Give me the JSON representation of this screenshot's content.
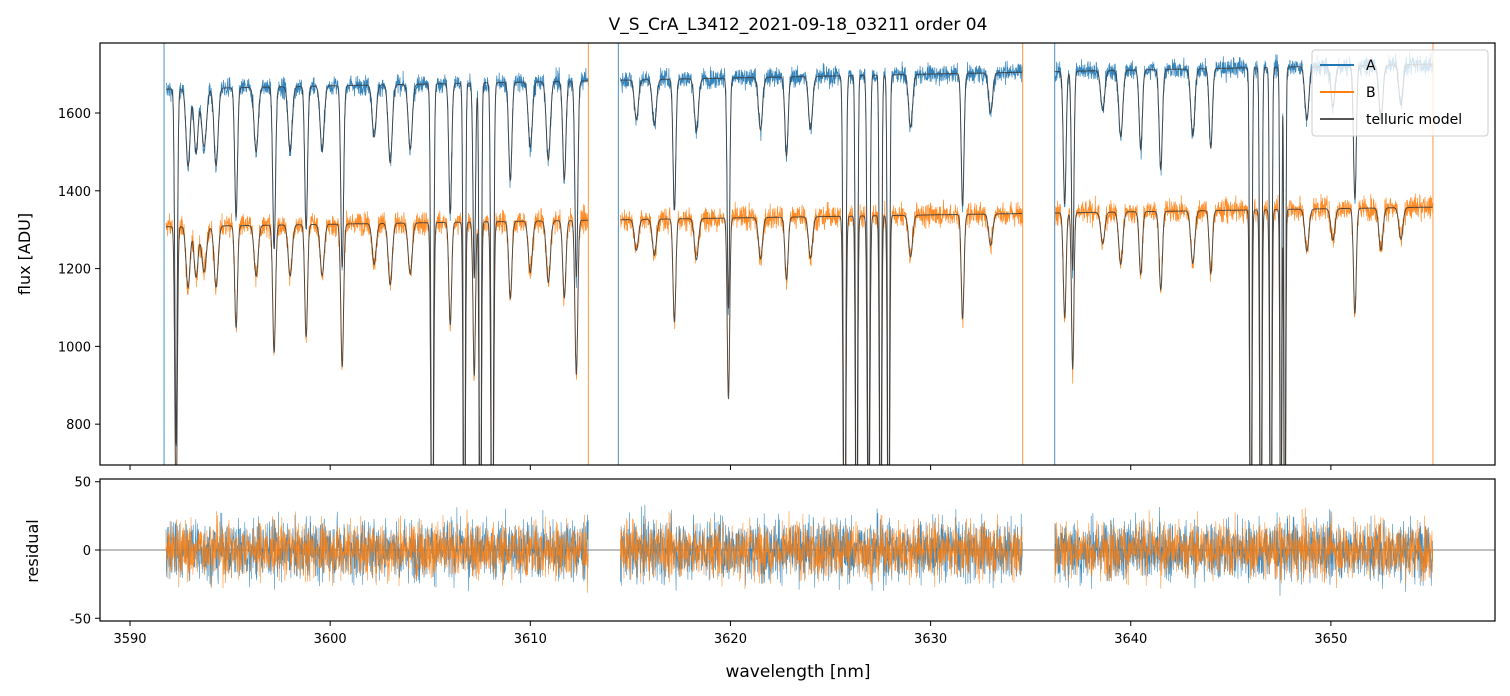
{
  "title": "V_S_CrA_L3412_2021-09-18_03211  order 04",
  "colors": {
    "A": "#1f77b4",
    "B": "#ff7f0e",
    "model": "#3a3a3a",
    "zero_line": "#555555"
  },
  "legend": {
    "placement": "top-right",
    "entries": [
      {
        "label": "A",
        "color": "#1f77b4"
      },
      {
        "label": "B",
        "color": "#ff7f0e"
      },
      {
        "label": "telluric model",
        "color": "#555555"
      }
    ]
  },
  "chart_data": [
    {
      "type": "line",
      "panel": "top",
      "title": "V_S_CrA_L3412_2021-09-18_03211  order 04",
      "xlabel": "",
      "ylabel": "flux [ADU]",
      "xlim": [
        3588.5,
        3658.2
      ],
      "ylim": [
        695,
        1780
      ],
      "yticks": [
        800,
        1000,
        1200,
        1400,
        1600
      ],
      "segments": [
        [
          3591.8,
          3612.9
        ],
        [
          3614.5,
          3634.6
        ],
        [
          3636.2,
          3655.1
        ]
      ],
      "series": [
        {
          "name": "A",
          "baseline": 1690,
          "noise": 18
        },
        {
          "name": "B",
          "baseline": 1330,
          "noise": 22
        },
        {
          "name": "telluric model"
        }
      ],
      "absorption_lines": [
        {
          "x": 3592.3,
          "depth": 0.55,
          "w": 0.06
        },
        {
          "x": 3592.9,
          "depth": 0.12,
          "w": 0.1
        },
        {
          "x": 3593.3,
          "depth": 0.1,
          "w": 0.1
        },
        {
          "x": 3593.7,
          "depth": 0.09,
          "w": 0.12
        },
        {
          "x": 3594.3,
          "depth": 0.12,
          "w": 0.1
        },
        {
          "x": 3595.3,
          "depth": 0.2,
          "w": 0.07
        },
        {
          "x": 3596.3,
          "depth": 0.1,
          "w": 0.1
        },
        {
          "x": 3597.2,
          "depth": 0.25,
          "w": 0.07
        },
        {
          "x": 3598.0,
          "depth": 0.1,
          "w": 0.1
        },
        {
          "x": 3598.8,
          "depth": 0.22,
          "w": 0.07
        },
        {
          "x": 3599.6,
          "depth": 0.1,
          "w": 0.1
        },
        {
          "x": 3600.6,
          "depth": 0.28,
          "w": 0.07
        },
        {
          "x": 3602.2,
          "depth": 0.08,
          "w": 0.1
        },
        {
          "x": 3603.0,
          "depth": 0.12,
          "w": 0.1
        },
        {
          "x": 3604.0,
          "depth": 0.1,
          "w": 0.1
        },
        {
          "x": 3605.1,
          "depth": 0.85,
          "w": 0.06
        },
        {
          "x": 3606.0,
          "depth": 0.2,
          "w": 0.07
        },
        {
          "x": 3606.7,
          "depth": 0.85,
          "w": 0.05
        },
        {
          "x": 3607.2,
          "depth": 0.3,
          "w": 0.06
        },
        {
          "x": 3607.5,
          "depth": 0.85,
          "w": 0.05
        },
        {
          "x": 3608.1,
          "depth": 0.85,
          "w": 0.06
        },
        {
          "x": 3609.0,
          "depth": 0.15,
          "w": 0.08
        },
        {
          "x": 3610.0,
          "depth": 0.1,
          "w": 0.1
        },
        {
          "x": 3610.9,
          "depth": 0.12,
          "w": 0.1
        },
        {
          "x": 3611.7,
          "depth": 0.15,
          "w": 0.08
        },
        {
          "x": 3612.3,
          "depth": 0.3,
          "w": 0.07
        },
        {
          "x": 3615.3,
          "depth": 0.06,
          "w": 0.1
        },
        {
          "x": 3616.2,
          "depth": 0.07,
          "w": 0.1
        },
        {
          "x": 3617.2,
          "depth": 0.2,
          "w": 0.07
        },
        {
          "x": 3618.3,
          "depth": 0.08,
          "w": 0.1
        },
        {
          "x": 3619.9,
          "depth": 0.35,
          "w": 0.06
        },
        {
          "x": 3621.5,
          "depth": 0.08,
          "w": 0.1
        },
        {
          "x": 3622.8,
          "depth": 0.12,
          "w": 0.08
        },
        {
          "x": 3624.0,
          "depth": 0.08,
          "w": 0.1
        },
        {
          "x": 3625.7,
          "depth": 0.85,
          "w": 0.06
        },
        {
          "x": 3626.3,
          "depth": 0.85,
          "w": 0.05
        },
        {
          "x": 3626.9,
          "depth": 0.7,
          "w": 0.06
        },
        {
          "x": 3627.5,
          "depth": 0.85,
          "w": 0.05
        },
        {
          "x": 3627.9,
          "depth": 0.85,
          "w": 0.05
        },
        {
          "x": 3629.0,
          "depth": 0.08,
          "w": 0.1
        },
        {
          "x": 3631.6,
          "depth": 0.2,
          "w": 0.07
        },
        {
          "x": 3633.0,
          "depth": 0.06,
          "w": 0.1
        },
        {
          "x": 3636.7,
          "depth": 0.2,
          "w": 0.07
        },
        {
          "x": 3637.1,
          "depth": 0.3,
          "w": 0.06
        },
        {
          "x": 3638.6,
          "depth": 0.06,
          "w": 0.1
        },
        {
          "x": 3639.5,
          "depth": 0.1,
          "w": 0.1
        },
        {
          "x": 3640.5,
          "depth": 0.12,
          "w": 0.08
        },
        {
          "x": 3641.5,
          "depth": 0.15,
          "w": 0.08
        },
        {
          "x": 3643.1,
          "depth": 0.1,
          "w": 0.1
        },
        {
          "x": 3644.0,
          "depth": 0.12,
          "w": 0.08
        },
        {
          "x": 3646.0,
          "depth": 0.85,
          "w": 0.05
        },
        {
          "x": 3646.5,
          "depth": 0.85,
          "w": 0.05
        },
        {
          "x": 3647.0,
          "depth": 0.85,
          "w": 0.05
        },
        {
          "x": 3647.5,
          "depth": 0.85,
          "w": 0.04
        },
        {
          "x": 3647.7,
          "depth": 0.85,
          "w": 0.04
        },
        {
          "x": 3648.8,
          "depth": 0.08,
          "w": 0.1
        },
        {
          "x": 3650.1,
          "depth": 0.06,
          "w": 0.1
        },
        {
          "x": 3651.2,
          "depth": 0.2,
          "w": 0.07
        },
        {
          "x": 3652.5,
          "depth": 0.08,
          "w": 0.1
        },
        {
          "x": 3653.5,
          "depth": 0.06,
          "w": 0.1
        }
      ],
      "edge_spikes": [
        3591.7,
        3612.9,
        3614.4,
        3634.6,
        3636.2,
        3655.1
      ]
    },
    {
      "type": "line",
      "panel": "bottom",
      "xlabel": "wavelength [nm]",
      "ylabel": "residual",
      "xlim": [
        3588.5,
        3658.2
      ],
      "ylim": [
        -52,
        52
      ],
      "xticks": [
        3590,
        3600,
        3610,
        3620,
        3630,
        3640,
        3650
      ],
      "yticks": [
        -50,
        0,
        50
      ],
      "zero_line": 0,
      "segments": [
        [
          3591.8,
          3612.9
        ],
        [
          3614.5,
          3634.6
        ],
        [
          3636.2,
          3655.1
        ]
      ],
      "series": [
        {
          "name": "A",
          "noise": 16
        },
        {
          "name": "B",
          "noise": 15
        }
      ]
    }
  ]
}
